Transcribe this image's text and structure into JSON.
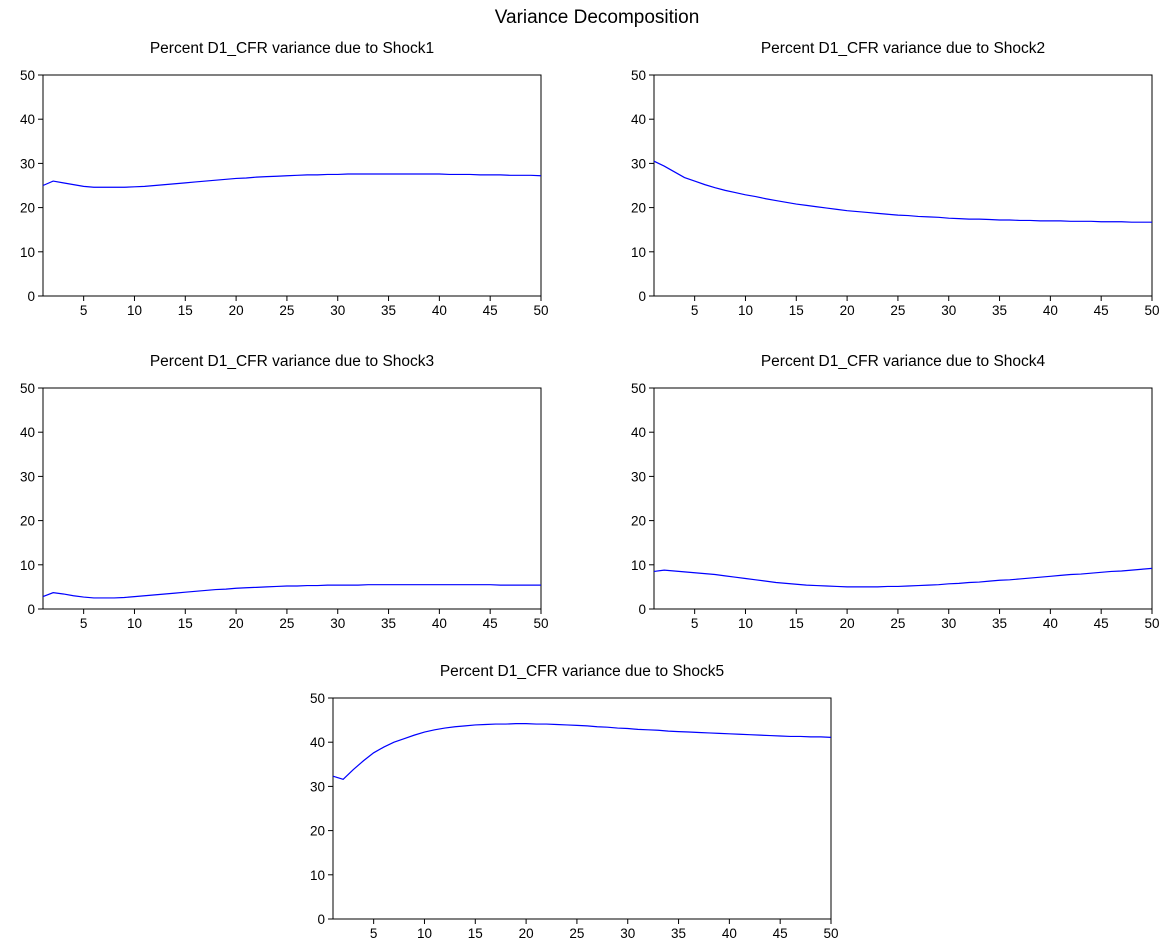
{
  "title": "Variance Decomposition",
  "colors": {
    "line": "#0000ff",
    "axis": "#000000",
    "background": "#ffffff"
  },
  "chart_data": [
    {
      "type": "line",
      "title": "Percent D1_CFR variance due to Shock1",
      "xlabel": "",
      "ylabel": "",
      "xlim": [
        1,
        50
      ],
      "ylim": [
        0,
        50
      ],
      "xticks": [
        5,
        10,
        15,
        20,
        25,
        30,
        35,
        40,
        45,
        50
      ],
      "yticks": [
        0,
        10,
        20,
        30,
        40,
        50
      ],
      "grid": false,
      "series": [
        {
          "x": [
            1,
            2,
            3,
            4,
            5,
            6,
            7,
            8,
            9,
            10,
            11,
            12,
            13,
            14,
            15,
            16,
            17,
            18,
            19,
            20,
            21,
            22,
            23,
            24,
            25,
            26,
            27,
            28,
            29,
            30,
            31,
            32,
            33,
            34,
            35,
            36,
            37,
            38,
            39,
            40,
            41,
            42,
            43,
            44,
            45,
            46,
            47,
            48,
            49,
            50
          ],
          "values": [
            25.0,
            26.0,
            25.6,
            25.2,
            24.8,
            24.6,
            24.6,
            24.6,
            24.6,
            24.7,
            24.8,
            25.0,
            25.2,
            25.4,
            25.6,
            25.8,
            26.0,
            26.2,
            26.4,
            26.6,
            26.7,
            26.9,
            27.0,
            27.1,
            27.2,
            27.3,
            27.4,
            27.4,
            27.5,
            27.5,
            27.6,
            27.6,
            27.6,
            27.6,
            27.6,
            27.6,
            27.6,
            27.6,
            27.6,
            27.6,
            27.5,
            27.5,
            27.5,
            27.4,
            27.4,
            27.4,
            27.3,
            27.3,
            27.3,
            27.2
          ]
        }
      ]
    },
    {
      "type": "line",
      "title": "Percent D1_CFR variance due to Shock2",
      "xlabel": "",
      "ylabel": "",
      "xlim": [
        1,
        50
      ],
      "ylim": [
        0,
        50
      ],
      "xticks": [
        5,
        10,
        15,
        20,
        25,
        30,
        35,
        40,
        45,
        50
      ],
      "yticks": [
        0,
        10,
        20,
        30,
        40,
        50
      ],
      "grid": false,
      "series": [
        {
          "x": [
            1,
            2,
            3,
            4,
            5,
            6,
            7,
            8,
            9,
            10,
            11,
            12,
            13,
            14,
            15,
            16,
            17,
            18,
            19,
            20,
            21,
            22,
            23,
            24,
            25,
            26,
            27,
            28,
            29,
            30,
            31,
            32,
            33,
            34,
            35,
            36,
            37,
            38,
            39,
            40,
            41,
            42,
            43,
            44,
            45,
            46,
            47,
            48,
            49,
            50
          ],
          "values": [
            30.5,
            29.4,
            28.1,
            26.8,
            26.0,
            25.2,
            24.5,
            23.9,
            23.4,
            22.9,
            22.5,
            22.0,
            21.6,
            21.2,
            20.8,
            20.5,
            20.2,
            19.9,
            19.6,
            19.3,
            19.1,
            18.9,
            18.7,
            18.5,
            18.3,
            18.2,
            18.0,
            17.9,
            17.8,
            17.6,
            17.5,
            17.4,
            17.4,
            17.3,
            17.2,
            17.2,
            17.1,
            17.1,
            17.0,
            17.0,
            17.0,
            16.9,
            16.9,
            16.9,
            16.8,
            16.8,
            16.8,
            16.7,
            16.7,
            16.7
          ]
        }
      ]
    },
    {
      "type": "line",
      "title": "Percent D1_CFR variance due to Shock3",
      "xlabel": "",
      "ylabel": "",
      "xlim": [
        1,
        50
      ],
      "ylim": [
        0,
        50
      ],
      "xticks": [
        5,
        10,
        15,
        20,
        25,
        30,
        35,
        40,
        45,
        50
      ],
      "yticks": [
        0,
        10,
        20,
        30,
        40,
        50
      ],
      "grid": false,
      "series": [
        {
          "x": [
            1,
            2,
            3,
            4,
            5,
            6,
            7,
            8,
            9,
            10,
            11,
            12,
            13,
            14,
            15,
            16,
            17,
            18,
            19,
            20,
            21,
            22,
            23,
            24,
            25,
            26,
            27,
            28,
            29,
            30,
            31,
            32,
            33,
            34,
            35,
            36,
            37,
            38,
            39,
            40,
            41,
            42,
            43,
            44,
            45,
            46,
            47,
            48,
            49,
            50
          ],
          "values": [
            2.8,
            3.7,
            3.4,
            3.0,
            2.7,
            2.5,
            2.5,
            2.5,
            2.6,
            2.8,
            3.0,
            3.2,
            3.4,
            3.6,
            3.8,
            4.0,
            4.2,
            4.4,
            4.5,
            4.7,
            4.8,
            4.9,
            5.0,
            5.1,
            5.2,
            5.2,
            5.3,
            5.3,
            5.4,
            5.4,
            5.4,
            5.4,
            5.5,
            5.5,
            5.5,
            5.5,
            5.5,
            5.5,
            5.5,
            5.5,
            5.5,
            5.5,
            5.5,
            5.5,
            5.5,
            5.4,
            5.4,
            5.4,
            5.4,
            5.4
          ]
        }
      ]
    },
    {
      "type": "line",
      "title": "Percent D1_CFR variance due to Shock4",
      "xlabel": "",
      "ylabel": "",
      "xlim": [
        1,
        50
      ],
      "ylim": [
        0,
        50
      ],
      "xticks": [
        5,
        10,
        15,
        20,
        25,
        30,
        35,
        40,
        45,
        50
      ],
      "yticks": [
        0,
        10,
        20,
        30,
        40,
        50
      ],
      "grid": false,
      "series": [
        {
          "x": [
            1,
            2,
            3,
            4,
            5,
            6,
            7,
            8,
            9,
            10,
            11,
            12,
            13,
            14,
            15,
            16,
            17,
            18,
            19,
            20,
            21,
            22,
            23,
            24,
            25,
            26,
            27,
            28,
            29,
            30,
            31,
            32,
            33,
            34,
            35,
            36,
            37,
            38,
            39,
            40,
            41,
            42,
            43,
            44,
            45,
            46,
            47,
            48,
            49,
            50
          ],
          "values": [
            8.5,
            8.8,
            8.6,
            8.4,
            8.2,
            8.0,
            7.8,
            7.5,
            7.2,
            6.9,
            6.6,
            6.3,
            6.0,
            5.8,
            5.6,
            5.4,
            5.3,
            5.2,
            5.1,
            5.0,
            5.0,
            5.0,
            5.0,
            5.1,
            5.1,
            5.2,
            5.3,
            5.4,
            5.5,
            5.7,
            5.8,
            6.0,
            6.1,
            6.3,
            6.5,
            6.6,
            6.8,
            7.0,
            7.2,
            7.4,
            7.6,
            7.8,
            7.9,
            8.1,
            8.3,
            8.5,
            8.6,
            8.8,
            9.0,
            9.2
          ]
        }
      ]
    },
    {
      "type": "line",
      "title": "Percent D1_CFR variance due to Shock5",
      "xlabel": "",
      "ylabel": "",
      "xlim": [
        1,
        50
      ],
      "ylim": [
        0,
        50
      ],
      "xticks": [
        5,
        10,
        15,
        20,
        25,
        30,
        35,
        40,
        45,
        50
      ],
      "yticks": [
        0,
        10,
        20,
        30,
        40,
        50
      ],
      "grid": false,
      "series": [
        {
          "x": [
            1,
            2,
            3,
            4,
            5,
            6,
            7,
            8,
            9,
            10,
            11,
            12,
            13,
            14,
            15,
            16,
            17,
            18,
            19,
            20,
            21,
            22,
            23,
            24,
            25,
            26,
            27,
            28,
            29,
            30,
            31,
            32,
            33,
            34,
            35,
            36,
            37,
            38,
            39,
            40,
            41,
            42,
            43,
            44,
            45,
            46,
            47,
            48,
            49,
            50
          ],
          "values": [
            32.3,
            31.6,
            33.8,
            35.8,
            37.6,
            38.9,
            40.0,
            40.8,
            41.6,
            42.3,
            42.8,
            43.2,
            43.5,
            43.7,
            43.9,
            44.0,
            44.1,
            44.1,
            44.2,
            44.2,
            44.1,
            44.1,
            44.0,
            43.9,
            43.8,
            43.7,
            43.5,
            43.4,
            43.2,
            43.1,
            42.9,
            42.8,
            42.7,
            42.5,
            42.4,
            42.3,
            42.2,
            42.1,
            42.0,
            41.9,
            41.8,
            41.7,
            41.6,
            41.5,
            41.4,
            41.3,
            41.3,
            41.2,
            41.2,
            41.1
          ]
        }
      ]
    }
  ]
}
